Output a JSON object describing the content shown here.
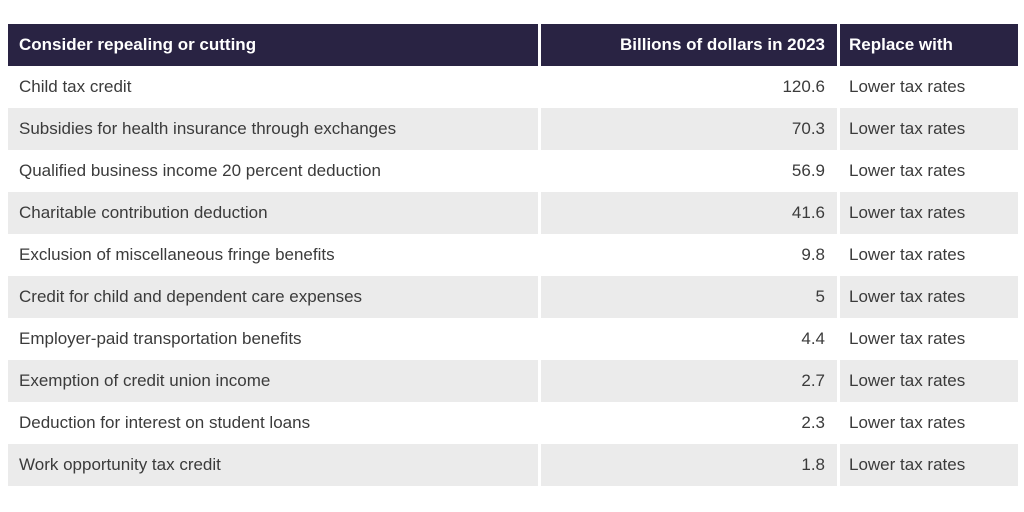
{
  "colors": {
    "header_bg": "#292343",
    "header_text": "#ffffff",
    "row_bg": "#ffffff",
    "row_alt_bg": "#ebebeb",
    "body_text": "#3b3b3b",
    "column_divider": "#ffffff"
  },
  "chart_data": {
    "type": "table",
    "columns": [
      "Consider repealing or cutting",
      "Billions of dollars in 2023",
      "Replace with"
    ],
    "column_align": [
      "left",
      "right",
      "left"
    ],
    "rows": [
      [
        "Child tax credit",
        "120.6",
        "Lower tax rates"
      ],
      [
        "Subsidies for health insurance through exchanges",
        "70.3",
        "Lower tax rates"
      ],
      [
        "Qualified business income 20 percent deduction",
        "56.9",
        "Lower tax rates"
      ],
      [
        "Charitable contribution deduction",
        "41.6",
        "Lower tax rates"
      ],
      [
        "Exclusion of miscellaneous fringe benefits",
        "9.8",
        "Lower tax rates"
      ],
      [
        "Credit for child and dependent care expenses",
        "5",
        "Lower tax rates"
      ],
      [
        "Employer-paid transportation benefits",
        "4.4",
        "Lower tax rates"
      ],
      [
        "Exemption of credit union income",
        "2.7",
        "Lower tax rates"
      ],
      [
        "Deduction for interest on student loans",
        "2.3",
        "Lower tax rates"
      ],
      [
        "Work opportunity tax credit",
        "1.8",
        "Lower tax rates"
      ]
    ],
    "values_unit": "Billions of dollars in 2023",
    "layout_hints": {
      "striped": true,
      "header_style": "dark",
      "grid": "column-gaps-only"
    }
  }
}
